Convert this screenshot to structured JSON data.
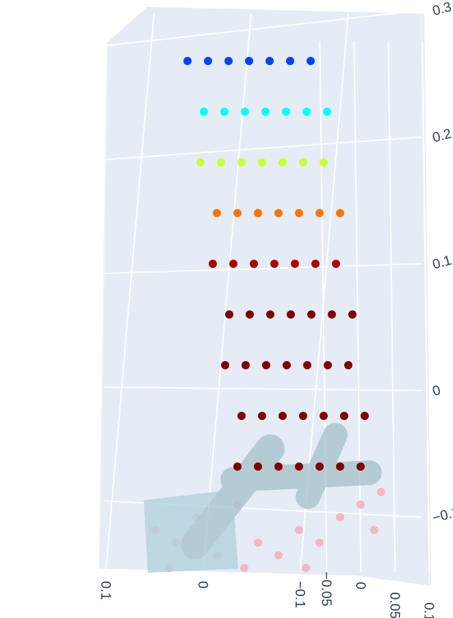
{
  "chart_data": {
    "type": "scatter3d",
    "xlim": [
      -0.12,
      0.12
    ],
    "ylim": [
      -0.06,
      0.11
    ],
    "zlim": [
      -0.16,
      0.32
    ],
    "xticks": [
      {
        "value": -0.1,
        "label": "−0.1"
      },
      0,
      0.1
    ],
    "yticks": [
      {
        "value": -0.05,
        "label": "−0.05"
      },
      0,
      0.05,
      0.1
    ],
    "zticks": [
      {
        "value": -0.1,
        "label": "−0.1"
      },
      0,
      0.1,
      0.2,
      0.3
    ],
    "grid": true,
    "series": [
      {
        "colorscale": "Jet",
        "reversescale": true,
        "cmin": 0.09,
        "cmax": 0.3,
        "x": [
          0,
          0,
          0,
          0,
          0,
          0,
          0,
          0,
          0,
          0,
          0,
          0,
          0,
          0,
          0,
          0,
          0,
          0,
          0,
          0,
          0,
          0,
          0,
          0,
          0,
          0,
          0,
          0,
          0,
          0,
          0,
          0,
          0,
          0,
          0,
          0,
          0,
          0,
          0,
          0,
          0,
          0,
          0,
          0,
          0,
          0,
          0,
          0,
          0,
          0,
          0,
          0,
          0,
          0,
          0,
          0,
          0,
          0,
          0,
          0,
          0,
          0,
          0
        ],
        "y": [
          -0.083,
          -0.053,
          -0.023,
          0.007,
          0.037,
          0.067,
          0.097,
          -0.059,
          -0.029,
          0.001,
          0.031,
          0.061,
          0.091,
          0.121,
          -0.064,
          -0.034,
          -0.004,
          0.026,
          0.056,
          0.086,
          0.116,
          -0.04,
          -0.01,
          0.02,
          0.05,
          0.08,
          0.11,
          0.14,
          -0.046,
          -0.016,
          0.014,
          0.044,
          0.074,
          0.104,
          0.134,
          -0.022,
          0.008,
          0.038,
          0.068,
          0.098,
          0.128,
          0.158,
          -0.028,
          0.002,
          0.032,
          0.062,
          0.092,
          0.122,
          0.152,
          -0.004,
          0.026,
          0.056,
          0.086,
          0.116,
          0.146,
          0.176,
          -0.01,
          0.02,
          0.05,
          0.08,
          0.11,
          0.14,
          0.17
        ],
        "z": [
          0.26,
          0.26,
          0.26,
          0.26,
          0.26,
          0.26,
          0.26,
          0.22,
          0.22,
          0.22,
          0.22,
          0.22,
          0.22,
          0.22,
          0.18,
          0.18,
          0.18,
          0.18,
          0.18,
          0.18,
          0.18,
          0.14,
          0.14,
          0.14,
          0.14,
          0.14,
          0.14,
          0.14,
          0.1,
          0.1,
          0.1,
          0.1,
          0.1,
          0.1,
          0.1,
          0.06,
          0.06,
          0.06,
          0.06,
          0.06,
          0.06,
          0.06,
          0.02,
          0.02,
          0.02,
          0.02,
          0.02,
          0.02,
          0.02,
          -0.02,
          -0.02,
          -0.02,
          -0.02,
          -0.02,
          -0.02,
          -0.02,
          -0.06,
          -0.06,
          -0.06,
          -0.06,
          -0.06,
          -0.06,
          -0.06
        ]
      },
      {
        "color": "#f4b6c2",
        "x": [
          0,
          0,
          0,
          0,
          0,
          0,
          0,
          0,
          0,
          0,
          0,
          0,
          0,
          0,
          0,
          0
        ],
        "y": [
          -0.13,
          -0.1,
          -0.07,
          -0.04,
          -0.01,
          0.02,
          0.05,
          0.08,
          0.11,
          0.14,
          0.17,
          0.2,
          -0.11,
          0.0,
          0.09,
          0.19
        ],
        "z": [
          -0.11,
          -0.12,
          -0.1,
          -0.13,
          -0.09,
          -0.12,
          -0.13,
          -0.11,
          -0.12,
          -0.1,
          -0.09,
          -0.08,
          -0.14,
          -0.14,
          -0.14,
          -0.11
        ]
      }
    ]
  }
}
